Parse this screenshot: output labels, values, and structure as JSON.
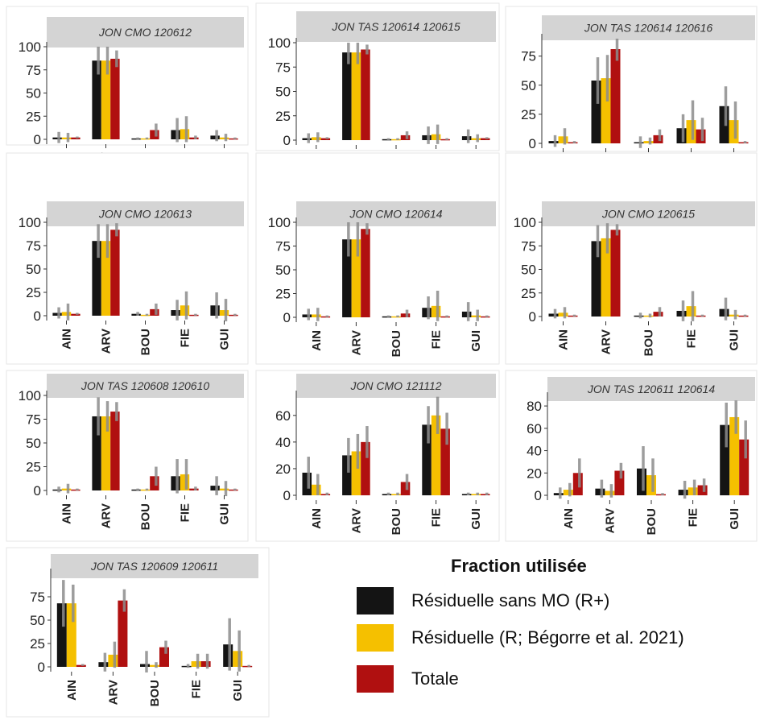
{
  "legend": {
    "title": "Fraction utilisée",
    "items": [
      {
        "label": "Résiduelle sans MO (R+)",
        "color": "#141414"
      },
      {
        "label": "Résiduelle (R; Bégorre et al. 2021)",
        "color": "#f5c000"
      },
      {
        "label": "Totale",
        "color": "#b01010"
      }
    ]
  },
  "chart_data": [
    {
      "type": "bar",
      "title": "JON CMO 120612",
      "categories": [
        "AIN",
        "ARV",
        "BOU",
        "FIE",
        "GUI"
      ],
      "ylim": [
        0,
        100
      ],
      "yticks": [
        0,
        25,
        50,
        75,
        100
      ],
      "series": [
        {
          "name": "Résiduelle sans MO (R+)",
          "values": [
            2,
            85,
            1,
            10,
            4
          ],
          "error": [
            6,
            15,
            1,
            13,
            6
          ]
        },
        {
          "name": "Résiduelle (R; Bégorre et al. 2021)",
          "values": [
            2,
            85,
            1,
            11,
            2
          ],
          "error": [
            5,
            15,
            1,
            14,
            4
          ]
        },
        {
          "name": "Totale",
          "values": [
            2,
            87,
            10,
            2,
            1
          ],
          "error": [
            1,
            9,
            7,
            2,
            1
          ]
        }
      ]
    },
    {
      "type": "bar",
      "title": "JON TAS  120614 120615",
      "categories": [
        "AIN",
        "ARV",
        "BOU",
        "FIE",
        "GUI"
      ],
      "ylim": [
        0,
        100
      ],
      "yticks": [
        0,
        25,
        50,
        75,
        100
      ],
      "series": [
        {
          "name": "Résiduelle sans MO (R+)",
          "values": [
            2,
            90,
            1,
            5,
            4
          ],
          "error": [
            5,
            12,
            1,
            9,
            7
          ]
        },
        {
          "name": "Résiduelle (R; Bégorre et al. 2021)",
          "values": [
            3,
            90,
            1,
            6,
            2
          ],
          "error": [
            5,
            12,
            1,
            10,
            4
          ]
        },
        {
          "name": "Totale",
          "values": [
            2,
            93,
            5,
            1,
            2
          ],
          "error": [
            1,
            5,
            4,
            1,
            1
          ]
        }
      ]
    },
    {
      "type": "bar",
      "title": "JON TAS 120614 120616",
      "categories": [
        "AIN",
        "ARV",
        "BOU",
        "FIE",
        "GUI"
      ],
      "ylim": [
        0,
        90
      ],
      "yticks": [
        0,
        25,
        50,
        75
      ],
      "series": [
        {
          "name": "Résiduelle sans MO (R+)",
          "values": [
            2,
            54,
            1,
            13,
            32
          ],
          "error": [
            5,
            20,
            5,
            12,
            17
          ]
        },
        {
          "name": "Résiduelle (R; Bégorre et al. 2021)",
          "values": [
            6,
            56,
            2,
            20,
            20
          ],
          "error": [
            7,
            20,
            3,
            17,
            16
          ]
        },
        {
          "name": "Totale",
          "values": [
            1,
            81,
            7,
            12,
            1
          ],
          "error": [
            1,
            10,
            5,
            10,
            1
          ]
        }
      ]
    },
    {
      "type": "bar",
      "title": "JON CMO 120613",
      "categories": [
        "AIN",
        "ARV",
        "BOU",
        "FIE",
        "GUI"
      ],
      "ylim": [
        0,
        100
      ],
      "yticks": [
        0,
        25,
        50,
        75,
        100
      ],
      "series": [
        {
          "name": "Résiduelle sans MO (R+)",
          "values": [
            3,
            80,
            2,
            6,
            11
          ],
          "error": [
            6,
            18,
            2,
            11,
            14
          ]
        },
        {
          "name": "Résiduelle (R; Bégorre et al. 2021)",
          "values": [
            4,
            80,
            1,
            11,
            6
          ],
          "error": [
            9,
            18,
            1,
            15,
            12
          ]
        },
        {
          "name": "Totale",
          "values": [
            2,
            92,
            7,
            1,
            1
          ],
          "error": [
            1,
            7,
            6,
            1,
            1
          ]
        }
      ]
    },
    {
      "type": "bar",
      "title": "JON CMO 120614",
      "categories": [
        "AIN",
        "ARV",
        "BOU",
        "FIE",
        "GUI"
      ],
      "ylim": [
        0,
        100
      ],
      "yticks": [
        0,
        25,
        50,
        75,
        100
      ],
      "series": [
        {
          "name": "Résiduelle sans MO (R+)",
          "values": [
            3,
            82,
            1,
            10,
            6
          ],
          "error": [
            6,
            18,
            1,
            12,
            10
          ]
        },
        {
          "name": "Résiduelle (R; Bégorre et al. 2021)",
          "values": [
            3,
            82,
            1,
            12,
            2
          ],
          "error": [
            7,
            18,
            1,
            16,
            6
          ]
        },
        {
          "name": "Totale",
          "values": [
            1,
            93,
            4,
            1,
            1
          ],
          "error": [
            1,
            6,
            4,
            1,
            1
          ]
        }
      ]
    },
    {
      "type": "bar",
      "title": "JON CMO 120615",
      "categories": [
        "AIN",
        "ARV",
        "BOU",
        "FIE",
        "GUI"
      ],
      "ylim": [
        0,
        100
      ],
      "yticks": [
        0,
        25,
        50,
        75,
        100
      ],
      "series": [
        {
          "name": "Résiduelle sans MO (R+)",
          "values": [
            3,
            80,
            1,
            6,
            8
          ],
          "error": [
            5,
            17,
            3,
            11,
            12
          ]
        },
        {
          "name": "Résiduelle (R; Bégorre et al. 2021)",
          "values": [
            4,
            83,
            1,
            11,
            2
          ],
          "error": [
            6,
            16,
            2,
            16,
            5
          ]
        },
        {
          "name": "Totale",
          "values": [
            1,
            92,
            5,
            1,
            1
          ],
          "error": [
            1,
            6,
            5,
            1,
            1
          ]
        }
      ]
    },
    {
      "type": "bar",
      "title": "JON TAS 120608 120610",
      "categories": [
        "AIN",
        "ARV",
        "BOU",
        "FIE",
        "GUI"
      ],
      "ylim": [
        0,
        100
      ],
      "yticks": [
        0,
        25,
        50,
        75,
        100
      ],
      "series": [
        {
          "name": "Résiduelle sans MO (R+)",
          "values": [
            1,
            78,
            1,
            15,
            5
          ],
          "error": [
            3,
            20,
            1,
            18,
            10
          ]
        },
        {
          "name": "Résiduelle (R; Bégorre et al. 2021)",
          "values": [
            2,
            78,
            1,
            17,
            2
          ],
          "error": [
            5,
            16,
            1,
            16,
            8
          ]
        },
        {
          "name": "Totale",
          "values": [
            1,
            83,
            15,
            2,
            1
          ],
          "error": [
            1,
            10,
            10,
            2,
            1
          ]
        }
      ]
    },
    {
      "type": "bar",
      "title": "JON CMO 121112",
      "categories": [
        "AIN",
        "ARV",
        "BOU",
        "FIE",
        "GUI"
      ],
      "ylim": [
        0,
        75
      ],
      "yticks": [
        0,
        20,
        40,
        60
      ],
      "series": [
        {
          "name": "Résiduelle sans MO (R+)",
          "values": [
            17,
            30,
            1,
            53,
            1
          ],
          "error": [
            12,
            13,
            1,
            14,
            1
          ]
        },
        {
          "name": "Résiduelle (R; Bégorre et al. 2021)",
          "values": [
            8,
            33,
            1,
            60,
            1
          ],
          "error": [
            8,
            13,
            1,
            14,
            1
          ]
        },
        {
          "name": "Totale",
          "values": [
            1,
            40,
            10,
            50,
            1
          ],
          "error": [
            1,
            12,
            6,
            12,
            1
          ]
        }
      ]
    },
    {
      "type": "bar",
      "title": "JON TAS 120611 120614",
      "categories": [
        "AIN",
        "ARV",
        "BOU",
        "FIE",
        "GUI"
      ],
      "ylim": [
        0,
        88
      ],
      "yticks": [
        0,
        20,
        40,
        60,
        80
      ],
      "series": [
        {
          "name": "Résiduelle sans MO (R+)",
          "values": [
            2,
            6,
            24,
            5,
            63
          ],
          "error": [
            5,
            8,
            20,
            8,
            20
          ]
        },
        {
          "name": "Résiduelle (R; Bégorre et al. 2021)",
          "values": [
            5,
            4,
            18,
            7,
            70
          ],
          "error": [
            6,
            6,
            15,
            7,
            15
          ]
        },
        {
          "name": "Totale",
          "values": [
            20,
            22,
            1,
            9,
            50
          ],
          "error": [
            13,
            7,
            1,
            6,
            17
          ]
        }
      ]
    },
    {
      "type": "bar",
      "title": "JON TAS 120609 120611",
      "categories": [
        "AIN",
        "ARV",
        "BOU",
        "FIE",
        "GUI"
      ],
      "ylim": [
        0,
        100
      ],
      "yticks": [
        0,
        25,
        50,
        75
      ],
      "series": [
        {
          "name": "Résiduelle sans MO (R+)",
          "values": [
            68,
            5,
            3,
            1,
            24
          ],
          "error": [
            25,
            10,
            14,
            2,
            28
          ]
        },
        {
          "name": "Résiduelle (R; Bégorre et al. 2021)",
          "values": [
            68,
            13,
            2,
            6,
            17
          ],
          "error": [
            20,
            14,
            3,
            8,
            22
          ]
        },
        {
          "name": "Totale",
          "values": [
            2,
            71,
            21,
            6,
            1
          ],
          "error": [
            1,
            12,
            7,
            8,
            1
          ]
        }
      ]
    }
  ]
}
